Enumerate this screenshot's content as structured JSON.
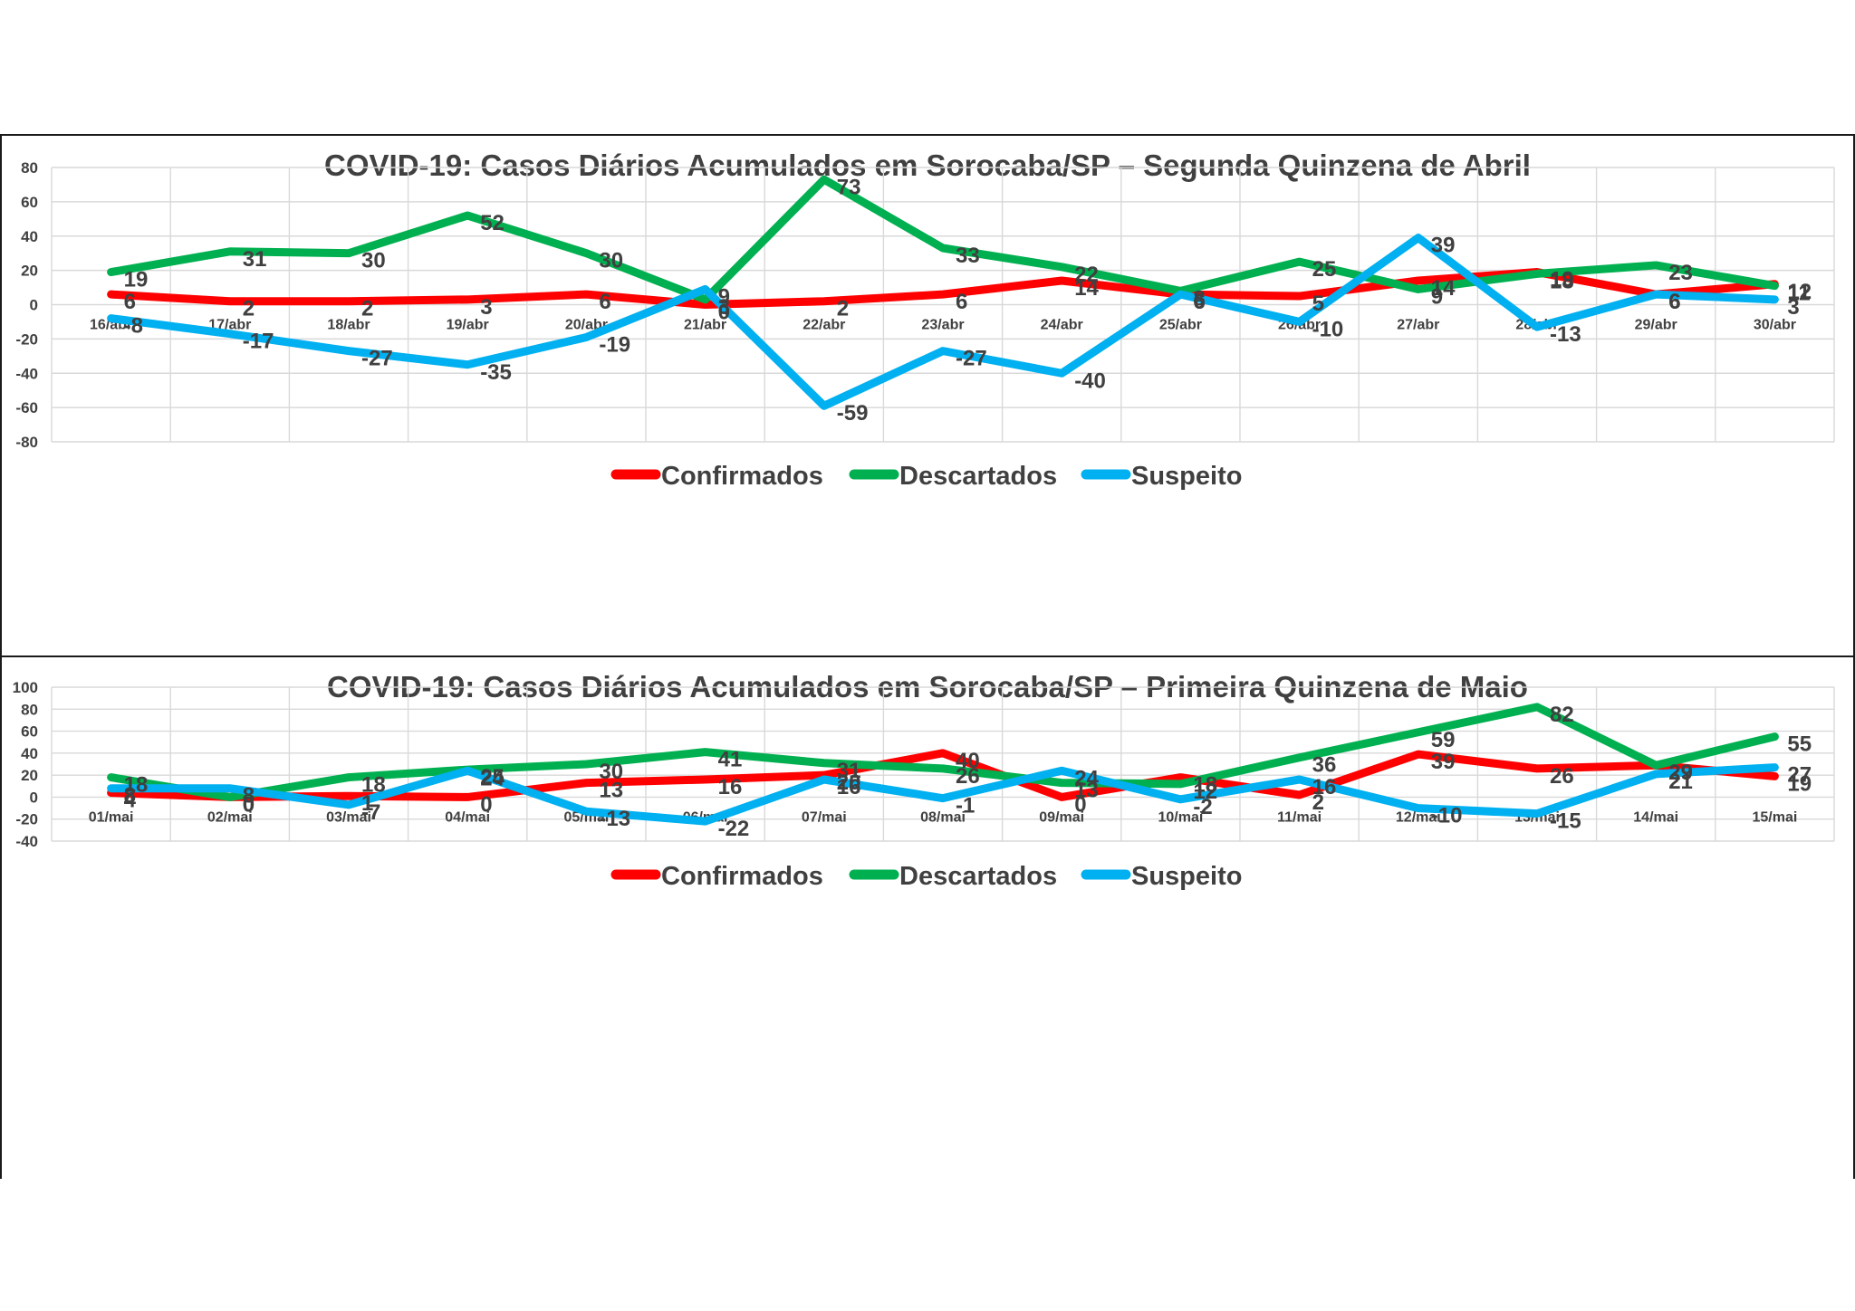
{
  "chart_data": [
    {
      "type": "line",
      "title": "COVID-19: Casos Diários Acumulados em Sorocaba/SP – Segunda Quinzena de Abril",
      "xlabel": "",
      "ylabel": "",
      "ylim": [
        -80,
        80
      ],
      "yticks": [
        80,
        60,
        40,
        20,
        0,
        -20,
        -40,
        -60,
        -80
      ],
      "grid": true,
      "legend_position": "bottom",
      "categories": [
        "16/abr",
        "17/abr",
        "18/abr",
        "19/abr",
        "20/abr",
        "21/abr",
        "22/abr",
        "23/abr",
        "24/abr",
        "25/abr",
        "26/abr",
        "27/abr",
        "28/abr",
        "29/abr",
        "30/abr"
      ],
      "series": [
        {
          "name": "Confirmados",
          "color": "#ff0000",
          "values": [
            6,
            2,
            2,
            3,
            6,
            0,
            2,
            6,
            14,
            6,
            5,
            14,
            19,
            6,
            12
          ]
        },
        {
          "name": "Descartados",
          "color": "#00b050",
          "values": [
            19,
            31,
            30,
            52,
            30,
            3,
            73,
            33,
            22,
            8,
            25,
            9,
            18,
            23,
            11
          ]
        },
        {
          "name": "Suspeito",
          "color": "#00b0f0",
          "values": [
            -8,
            -17,
            -27,
            -35,
            -19,
            9,
            -59,
            -27,
            -40,
            6,
            -10,
            39,
            -13,
            6,
            3
          ]
        }
      ]
    },
    {
      "type": "line",
      "title": "COVID-19: Casos Diários Acumulados em Sorocaba/SP – Primeira Quinzena de Maio",
      "xlabel": "",
      "ylabel": "",
      "ylim": [
        -40,
        100
      ],
      "yticks": [
        100,
        80,
        60,
        40,
        20,
        0,
        -20,
        -40
      ],
      "grid": true,
      "legend_position": "bottom",
      "categories": [
        "01/mai",
        "02/mai",
        "03/mai",
        "04/mai",
        "05/mai",
        "06/mai",
        "07/mai",
        "08/mai",
        "09/mai",
        "10/mai",
        "11/mai",
        "12/mai",
        "13/mai",
        "14/mai",
        "15/mai"
      ],
      "series": [
        {
          "name": "Confirmados",
          "color": "#ff0000",
          "values": [
            4,
            0,
            1,
            0,
            13,
            16,
            20,
            40,
            0,
            18,
            2,
            39,
            26,
            29,
            19
          ]
        },
        {
          "name": "Descartados",
          "color": "#00b050",
          "values": [
            18,
            0,
            18,
            25,
            30,
            41,
            31,
            26,
            13,
            12,
            36,
            59,
            82,
            29,
            55
          ]
        },
        {
          "name": "Suspeito",
          "color": "#00b0f0",
          "values": [
            8,
            8,
            -7,
            24,
            -13,
            -22,
            16,
            -1,
            24,
            -2,
            16,
            -10,
            -15,
            21,
            27
          ]
        }
      ]
    }
  ]
}
